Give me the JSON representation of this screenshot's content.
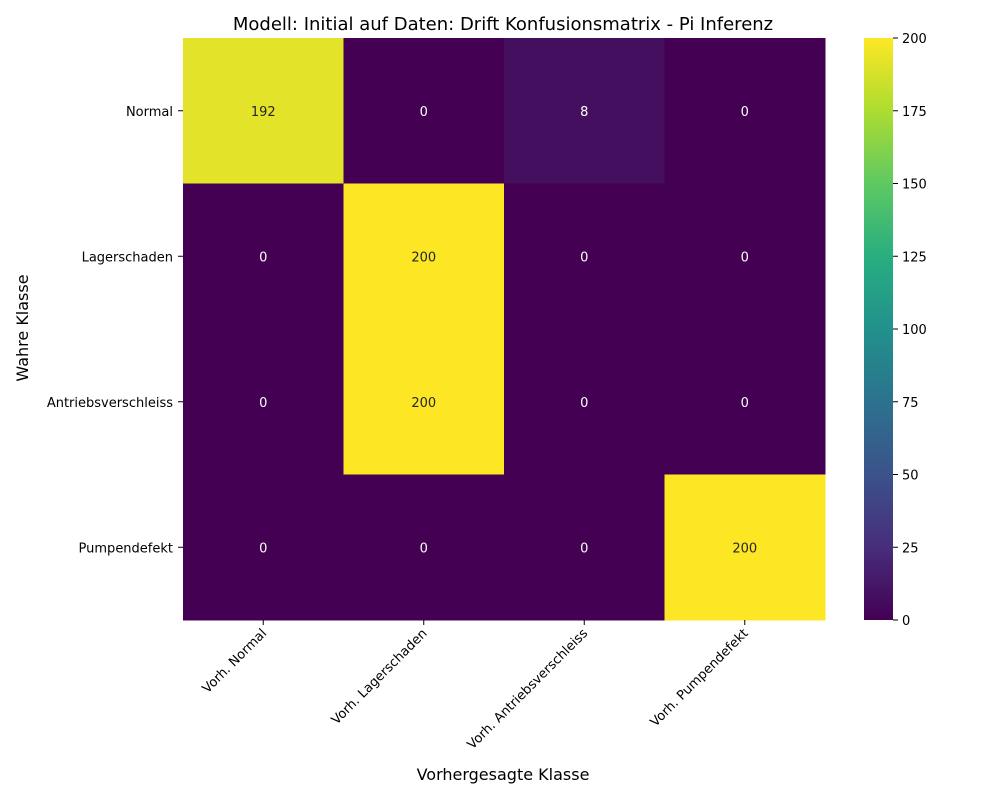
{
  "chart_data": {
    "type": "heatmap",
    "title": "Modell: Initial auf Daten: Drift Konfusionsmatrix - Pi Inferenz",
    "xlabel": "Vorhergesagte Klasse",
    "ylabel": "Wahre Klasse",
    "x_categories": [
      "Vorh. Normal",
      "Vorh. Lagerschaden",
      "Vorh. Antriebsverschleiss",
      "Vorh. Pumpendefekt"
    ],
    "y_categories": [
      "Normal",
      "Lagerschaden",
      "Antriebsverschleiss",
      "Pumpendefekt"
    ],
    "values": [
      [
        192,
        0,
        8,
        0
      ],
      [
        0,
        200,
        0,
        0
      ],
      [
        0,
        200,
        0,
        0
      ],
      [
        0,
        0,
        0,
        200
      ]
    ],
    "colormap": "viridis",
    "colorbar": {
      "min": 0,
      "max": 200,
      "ticks": [
        0,
        25,
        50,
        75,
        100,
        125,
        150,
        175,
        200
      ]
    }
  }
}
